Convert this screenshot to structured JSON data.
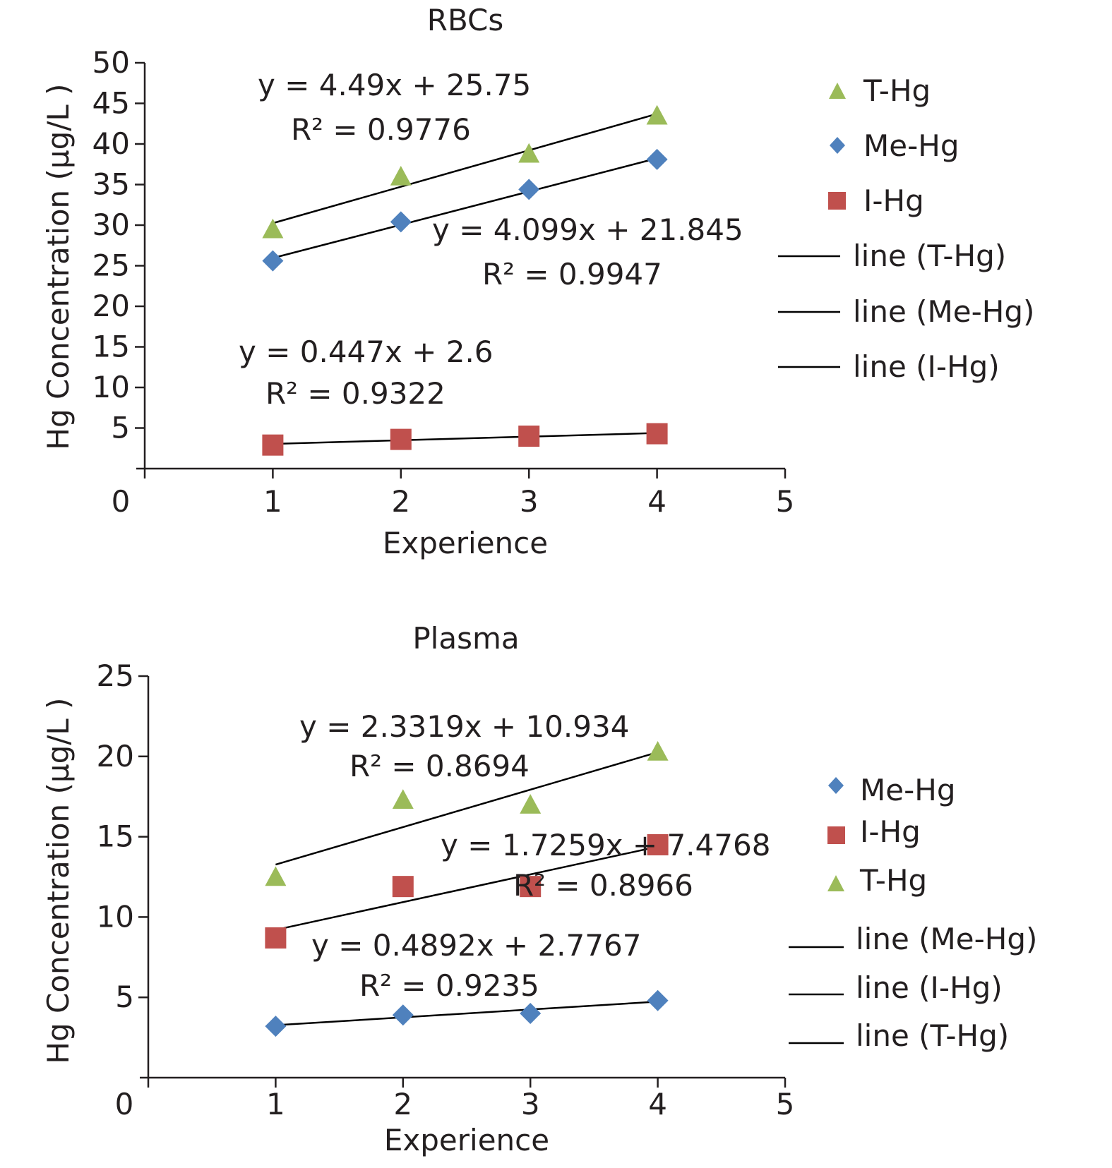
{
  "chart_data": [
    {
      "type": "scatter",
      "title": "RBCs",
      "xlabel": "Experience",
      "ylabel": "Hg Concentration (μg/L )",
      "xlim": [
        0,
        5
      ],
      "ylim": [
        0,
        50
      ],
      "x_ticks": [
        "0",
        "1",
        "2",
        "3",
        "4",
        "5"
      ],
      "y_ticks": [
        "5",
        "10",
        "15",
        "20",
        "25",
        "30",
        "35",
        "40",
        "45",
        "50"
      ],
      "grid": false,
      "legend_position": "right",
      "series": [
        {
          "name": "T-Hg",
          "marker": "triangle",
          "color": "#9bbb59",
          "x": [
            1,
            2,
            3,
            4
          ],
          "y": [
            29.5,
            36.0,
            38.8,
            43.5
          ],
          "fit": {
            "slope": 4.49,
            "intercept": 25.75,
            "equation": "y = 4.49x + 25.75",
            "r2_label": "R² = 0.9776",
            "legend": "line (T-Hg)"
          }
        },
        {
          "name": "Me-Hg",
          "marker": "diamond",
          "color": "#4f81bd",
          "x": [
            1,
            2,
            3,
            4
          ],
          "y": [
            25.6,
            30.4,
            34.4,
            38.1
          ],
          "fit": {
            "slope": 4.099,
            "intercept": 21.845,
            "equation": "y = 4.099x + 21.845",
            "r2_label": "R² = 0.9947",
            "legend": "line (Me-Hg)"
          }
        },
        {
          "name": "I-Hg",
          "marker": "square",
          "color": "#c0504d",
          "x": [
            1,
            2,
            3,
            4
          ],
          "y": [
            2.9,
            3.6,
            4.0,
            4.3
          ],
          "fit": {
            "slope": 0.447,
            "intercept": 2.6,
            "equation": "y = 0.447x + 2.6",
            "r2_label": "R² = 0.9322",
            "legend": "line (I-Hg)"
          }
        }
      ],
      "legend_order": [
        "T-Hg",
        "Me-Hg",
        "I-Hg",
        "line (T-Hg)",
        "line (Me-Hg)",
        "line (I-Hg)"
      ]
    },
    {
      "type": "scatter",
      "title": "Plasma",
      "xlabel": "Experience",
      "ylabel": "Hg Concentration (μg/L )",
      "xlim": [
        0,
        5
      ],
      "ylim": [
        0,
        25
      ],
      "x_ticks": [
        "0",
        "1",
        "2",
        "3",
        "4",
        "5"
      ],
      "y_ticks": [
        "5",
        "10",
        "15",
        "20",
        "25"
      ],
      "grid": false,
      "legend_position": "right",
      "series": [
        {
          "name": "Me-Hg",
          "marker": "diamond",
          "color": "#4f81bd",
          "x": [
            1,
            2,
            3,
            4
          ],
          "y": [
            3.2,
            3.9,
            4.0,
            4.8
          ],
          "fit": {
            "slope": 0.4892,
            "intercept": 2.7767,
            "equation": "y = 0.4892x + 2.7767",
            "r2_label": "R² = 0.9235",
            "legend": "line (Me-Hg)"
          }
        },
        {
          "name": "I-Hg",
          "marker": "square",
          "color": "#c0504d",
          "x": [
            1,
            2,
            3,
            4
          ],
          "y": [
            8.7,
            11.9,
            11.9,
            14.5
          ],
          "fit": {
            "slope": 1.7259,
            "intercept": 7.4768,
            "equation": "y = 1.7259x + 7.4768",
            "r2_label": "R² = 0.8966",
            "legend": "line (I-Hg)"
          }
        },
        {
          "name": "T-Hg",
          "marker": "triangle",
          "color": "#9bbb59",
          "x": [
            1,
            2,
            3,
            4
          ],
          "y": [
            12.5,
            17.3,
            17.0,
            20.3
          ],
          "fit": {
            "slope": 2.3319,
            "intercept": 10.934,
            "equation": "y = 2.3319x + 10.934",
            "r2_label": "R² = 0.8694",
            "legend": "line (T-Hg)"
          }
        }
      ],
      "legend_order": [
        "Me-Hg",
        "I-Hg",
        "T-Hg",
        "line (Me-Hg)",
        "line (I-Hg)",
        "line (T-Hg)"
      ]
    }
  ]
}
